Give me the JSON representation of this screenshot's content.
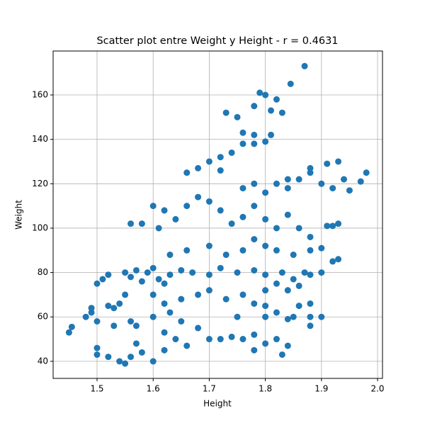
{
  "chart_data": {
    "type": "scatter",
    "title": "Scatter plot entre Weight y Height - r = 0.4631",
    "x_label": "Height",
    "y_label": "Weight",
    "color": "#1f77b4",
    "grid": true,
    "xlim": [
      1.4217,
      2.0088
    ],
    "ylim": [
      32.3,
      179.8
    ],
    "xticks": [
      1.5,
      1.6,
      1.7,
      1.8,
      1.9,
      {
        "value": 2,
        "label": "2.0"
      }
    ],
    "yticks": [
      40,
      60,
      80,
      100,
      120,
      140,
      160
    ],
    "x": [
      1.45,
      1.455,
      1.48,
      1.49,
      1.5,
      1.5,
      1.51,
      1.52,
      1.53,
      1.54,
      1.55,
      1.56,
      1.57,
      1.58,
      1.59,
      1.6,
      1.61,
      1.62,
      1.63,
      1.65,
      1.67,
      1.7,
      1.72,
      1.75,
      1.78,
      1.8,
      1.83,
      1.85,
      1.87,
      1.88,
      1.9,
      1.93,
      1.5,
      1.5,
      1.52,
      1.54,
      1.55,
      1.56,
      1.58,
      1.6,
      1.62,
      1.57,
      1.53,
      1.56,
      1.6,
      1.63,
      1.65,
      1.68,
      1.7,
      1.72,
      1.74,
      1.76,
      1.78,
      1.8,
      1.82,
      1.84,
      1.83,
      1.78,
      1.66,
      1.64,
      1.62,
      1.75,
      1.8,
      1.85,
      1.88,
      1.9,
      1.86,
      1.88,
      1.6,
      1.62,
      1.65,
      1.68,
      1.7,
      1.73,
      1.76,
      1.78,
      1.8,
      1.82,
      1.84,
      1.86,
      1.55,
      1.52,
      1.63,
      1.66,
      1.7,
      1.73,
      1.76,
      1.78,
      1.8,
      1.82,
      1.85,
      1.88,
      1.9,
      1.92,
      1.56,
      1.58,
      1.6,
      1.62,
      1.61,
      1.64,
      1.66,
      1.68,
      1.7,
      1.72,
      1.74,
      1.76,
      1.78,
      1.8,
      1.82,
      1.84,
      1.86,
      1.88,
      1.92,
      1.91,
      1.93,
      1.76,
      1.78,
      1.8,
      1.82,
      1.84,
      1.86,
      1.88,
      1.9,
      1.92,
      1.93,
      1.91,
      1.88,
      1.84,
      1.95,
      1.97,
      1.98,
      1.94,
      1.66,
      1.68,
      1.7,
      1.72,
      1.74,
      1.76,
      1.78,
      1.8,
      1.72,
      1.78,
      1.81,
      1.78,
      1.79,
      1.8,
      1.81,
      1.82,
      1.83,
      1.75,
      1.73,
      1.76,
      1.845,
      1.87,
      1.8,
      1.82,
      1.88,
      1.84,
      1.57,
      1.49
    ],
    "values": [
      53,
      55.5,
      60,
      62,
      58,
      75,
      77,
      79,
      64,
      66,
      80,
      78,
      81,
      76,
      80,
      82,
      77,
      75,
      79,
      81,
      80,
      79,
      82,
      80,
      81,
      79,
      80,
      77,
      80,
      79,
      80,
      86,
      46,
      43,
      42,
      40,
      39,
      42,
      44,
      40,
      45,
      48,
      56,
      58,
      60,
      62,
      58,
      55,
      50,
      50,
      51,
      50,
      52,
      48,
      50,
      47,
      43,
      45,
      47,
      50,
      53,
      60,
      60,
      60,
      60,
      60,
      65,
      66,
      70,
      66,
      68,
      70,
      72,
      68,
      70,
      66,
      72,
      75,
      72,
      74,
      70,
      65,
      88,
      90,
      92,
      88,
      90,
      95,
      92,
      90,
      88,
      90,
      91,
      85,
      102,
      102,
      110,
      108,
      100,
      104,
      110,
      114,
      112,
      108,
      102,
      105,
      110,
      104,
      100,
      106,
      100,
      96,
      101,
      101,
      102,
      118,
      120,
      116,
      120,
      118,
      122,
      125,
      120,
      118,
      130,
      129,
      127,
      122,
      117,
      121,
      125,
      122,
      125,
      127,
      130,
      132,
      134,
      138,
      138,
      139,
      126,
      142,
      142,
      155,
      161,
      160,
      153,
      158,
      152,
      150,
      152,
      143,
      165,
      173,
      65,
      62,
      56,
      59,
      56,
      64
    ]
  }
}
